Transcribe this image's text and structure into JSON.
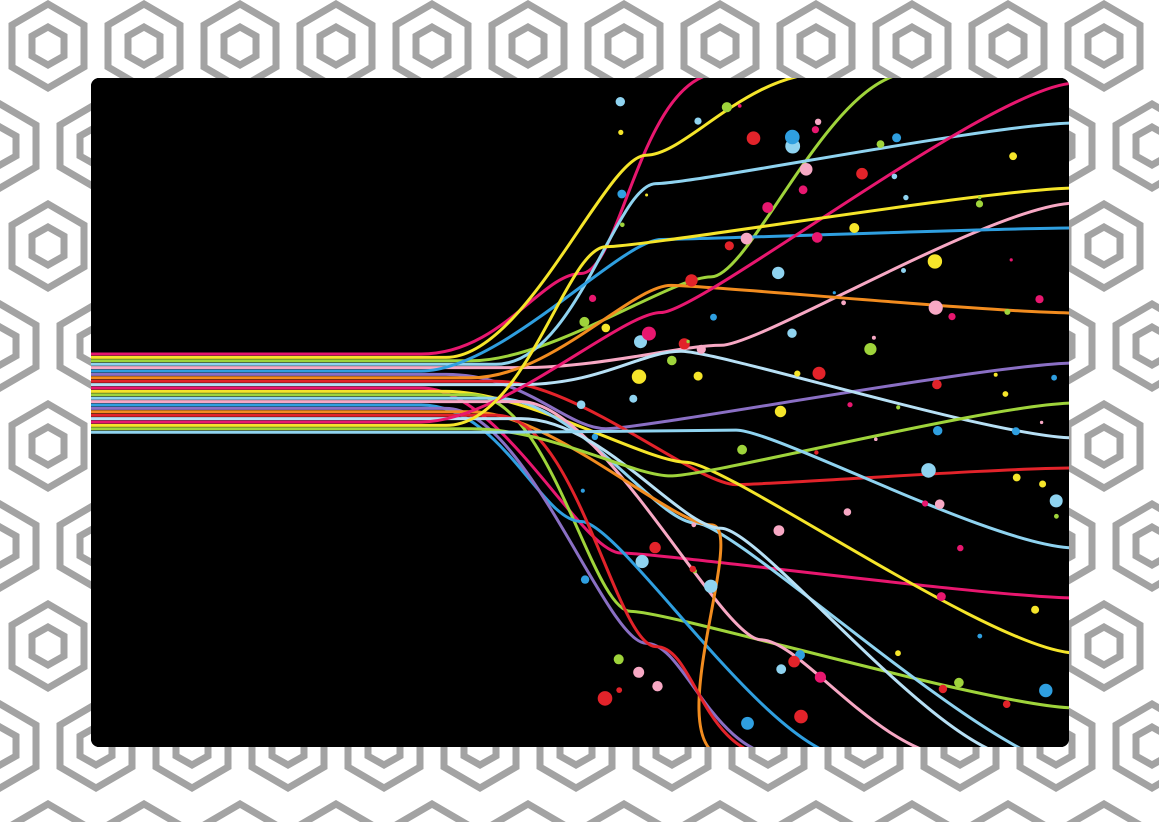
{
  "background": {
    "pattern": "hexagon-outline-tiles",
    "pattern_color": "#a3a3a3",
    "base_color": "#ffffff"
  },
  "artwork": {
    "subject": "abstract-flowing-lines",
    "background_color": "#000000",
    "line_colors": [
      "#e8176f",
      "#f5e52a",
      "#9fd43b",
      "#8fd3f0",
      "#f7a8c4",
      "#2f9fe0",
      "#8a6fc4",
      "#f28c1f",
      "#e2232a",
      "#b7e0f5"
    ],
    "dot_colors": [
      "#e2232a",
      "#f5e52a",
      "#9fd43b",
      "#8fd3f0",
      "#2f9fe0",
      "#f7a8c4",
      "#e8176f"
    ]
  }
}
